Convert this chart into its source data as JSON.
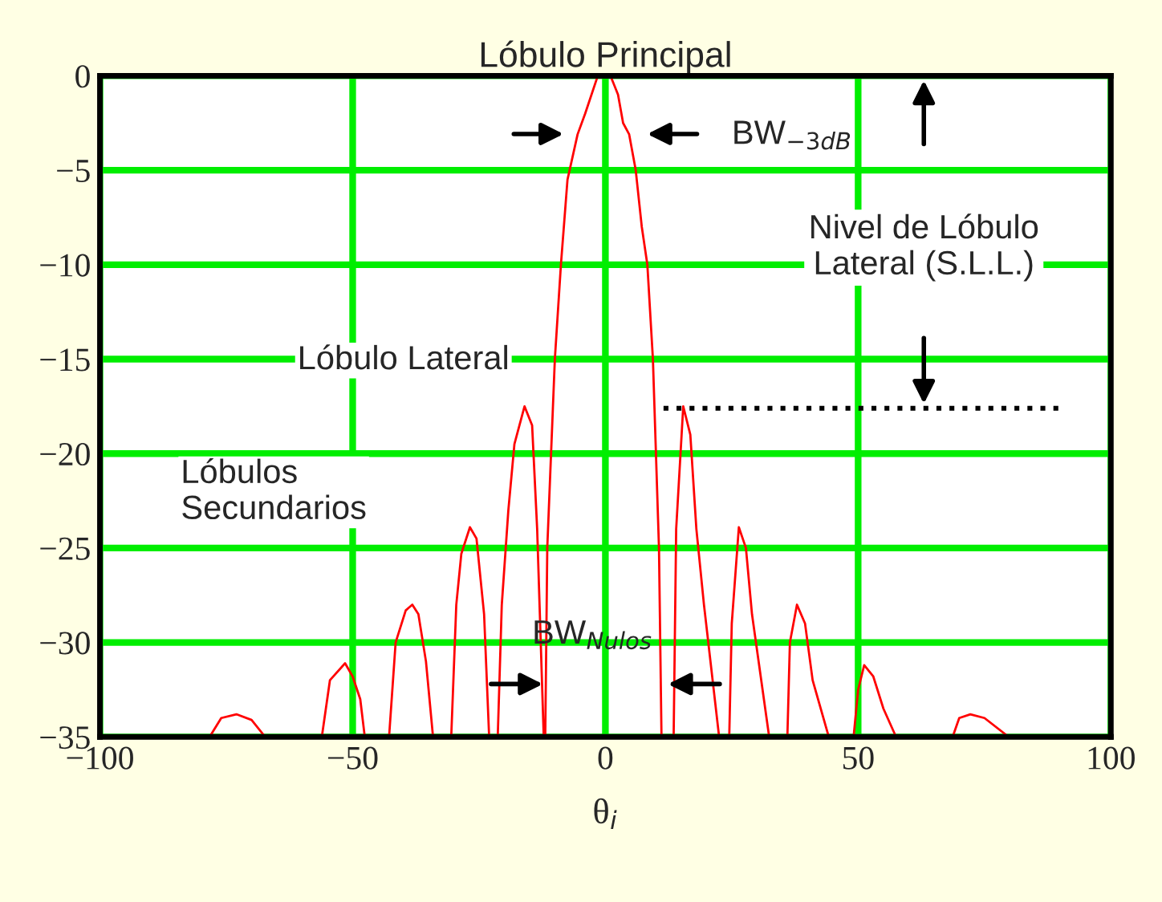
{
  "chart_data": {
    "type": "line",
    "title": "Lóbulo Principal",
    "xlabel": "θ$_{i}$",
    "xlim": [
      -100,
      100
    ],
    "ylim": [
      -35,
      0
    ],
    "xticks": [
      {
        "value": -100,
        "label": "−100"
      },
      {
        "value": -50,
        "label": "−50"
      },
      0,
      50,
      100
    ],
    "yticks": [
      0,
      {
        "value": -5,
        "label": "−5"
      },
      {
        "value": -10,
        "label": "−10"
      },
      {
        "value": -15,
        "label": "−15"
      },
      {
        "value": -20,
        "label": "−20"
      },
      {
        "value": -25,
        "label": "−25"
      },
      {
        "value": -30,
        "label": "−30"
      },
      {
        "value": -35,
        "label": "−35"
      }
    ],
    "grid": true,
    "legend": false,
    "marker": "none",
    "line_style": "solid",
    "series": [
      {
        "color": "#ff0000",
        "x": [
          -78.3,
          -76,
          -73,
          -70,
          -67.3,
          -56.1,
          -54.5,
          -51.5,
          -50,
          -48.5,
          -47.6,
          -42.8,
          -41.5,
          -39.5,
          -38.2,
          -37,
          -35.5,
          -34.1,
          -30.5,
          -29.5,
          -28.5,
          -26.8,
          -25.5,
          -24,
          -23,
          -21.3,
          -20.5,
          -19.2,
          -18,
          -16,
          -14.5,
          -13.5,
          -12.2,
          -11.9,
          -11.5,
          -10,
          -8.8,
          -7.5,
          -5.5,
          -4,
          -1.5,
          1,
          2.5,
          3.5,
          4.7,
          6,
          7.2,
          8.3,
          9.4,
          10.6,
          11.1,
          13.5,
          14,
          15.4,
          16.8,
          18,
          19.5,
          22.5,
          24.5,
          25,
          26.4,
          27.8,
          29,
          32.4,
          36,
          36.5,
          37.9,
          39.5,
          41,
          44.2,
          49.1,
          50,
          51.2,
          53,
          55,
          57.5,
          68.7,
          70,
          72.2,
          75,
          79.8
        ],
        "values": [
          -35,
          -34,
          -33.8,
          -34.1,
          -35,
          -35,
          -32,
          -31.1,
          -31.8,
          -33,
          -35,
          -35,
          -30,
          -28.3,
          -28,
          -28.5,
          -31,
          -35,
          -35,
          -28,
          -25.3,
          -23.9,
          -24.5,
          -28.5,
          -35,
          -35,
          -28,
          -23,
          -19.5,
          -17.5,
          -18.5,
          -24,
          -35,
          -35,
          -25,
          -15,
          -10,
          -5.5,
          -3.1,
          -2,
          0,
          0,
          -1,
          -2.5,
          -3.1,
          -5,
          -8,
          -10,
          -15,
          -25,
          -35,
          -35,
          -24,
          -17.5,
          -19,
          -24,
          -28,
          -35,
          -35,
          -29,
          -23.9,
          -25,
          -28.5,
          -35,
          -35,
          -30,
          -28,
          -29,
          -32,
          -35,
          -35,
          -32.5,
          -31.2,
          -31.8,
          -33.5,
          -35,
          -35,
          -34,
          -33.8,
          -34,
          -35
        ]
      },
      {
        "type": "line",
        "color": "#000000",
        "line_style": "dotted",
        "x": [
          11.5,
          89.7
        ],
        "values": [
          -17.6,
          -17.6
        ]
      }
    ],
    "annotations": [
      "BW$_{−3dB}$",
      "Nivel de Lóbulo\nLateral (S.L.L.)",
      {
        "text": "Lóbulo Lateral",
        "x": -16,
        "y": -17.5
      },
      "Lóbulos\nSecundarios",
      {
        "text": "BW$_{Nulos}$",
        "x": 11.5,
        "y": -32.2
      }
    ]
  }
}
